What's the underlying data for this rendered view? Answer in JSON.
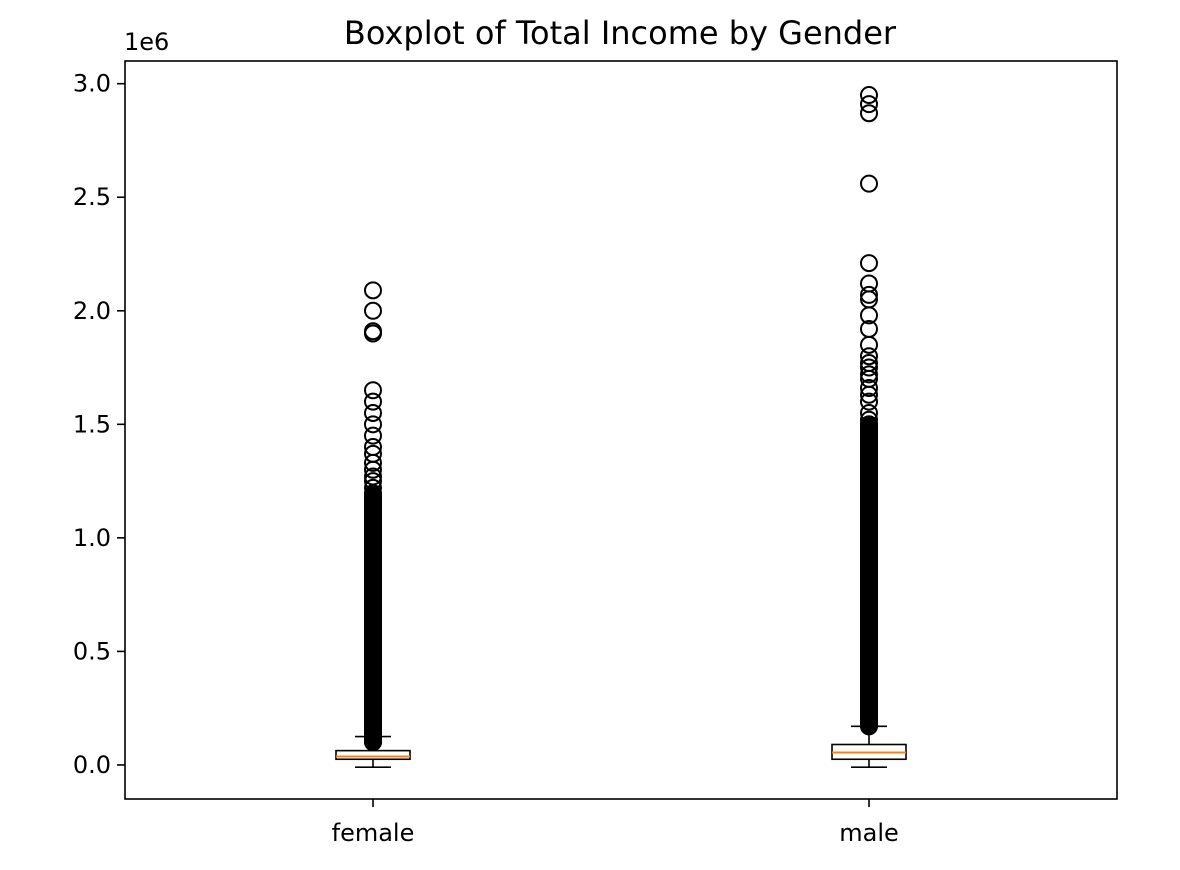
{
  "chart_data": {
    "type": "boxplot",
    "title": "Boxplot of Total Income by Gender",
    "xlabel": "",
    "ylabel": "",
    "y_offset_label": "1e6",
    "ylim": [
      -0.15,
      3.1
    ],
    "yticks": [
      0.0,
      0.5,
      1.0,
      1.5,
      2.0,
      2.5,
      3.0
    ],
    "ytick_labels": [
      "0.0",
      "0.5",
      "1.0",
      "1.5",
      "2.0",
      "2.5",
      "3.0"
    ],
    "categories": [
      "female",
      "male"
    ],
    "grid": false,
    "series": [
      {
        "category": "female",
        "whisker_low": -0.01,
        "q1": 0.025,
        "median": 0.037,
        "q3": 0.063,
        "whisker_high": 0.125,
        "dense_outlier_range": [
          0.1,
          1.2
        ],
        "outliers": [
          2.09,
          2.0,
          1.91,
          1.9,
          1.65,
          1.6,
          1.55,
          1.5,
          1.45,
          1.4,
          1.37,
          1.33,
          1.3,
          1.27,
          1.25,
          1.22
        ]
      },
      {
        "category": "male",
        "whisker_low": -0.01,
        "q1": 0.025,
        "median": 0.055,
        "q3": 0.09,
        "whisker_high": 0.17,
        "dense_outlier_range": [
          0.17,
          1.5
        ],
        "outliers": [
          2.95,
          2.91,
          2.87,
          2.56,
          2.21,
          2.12,
          2.07,
          2.05,
          1.98,
          1.92,
          1.85,
          1.8,
          1.77,
          1.75,
          1.72,
          1.7,
          1.66,
          1.63,
          1.6,
          1.55,
          1.52,
          1.5
        ]
      }
    ]
  },
  "colors": {
    "box": "#000000",
    "median": "#ff7f0e",
    "outlier_edge": "#000000",
    "axes": "#000000"
  }
}
